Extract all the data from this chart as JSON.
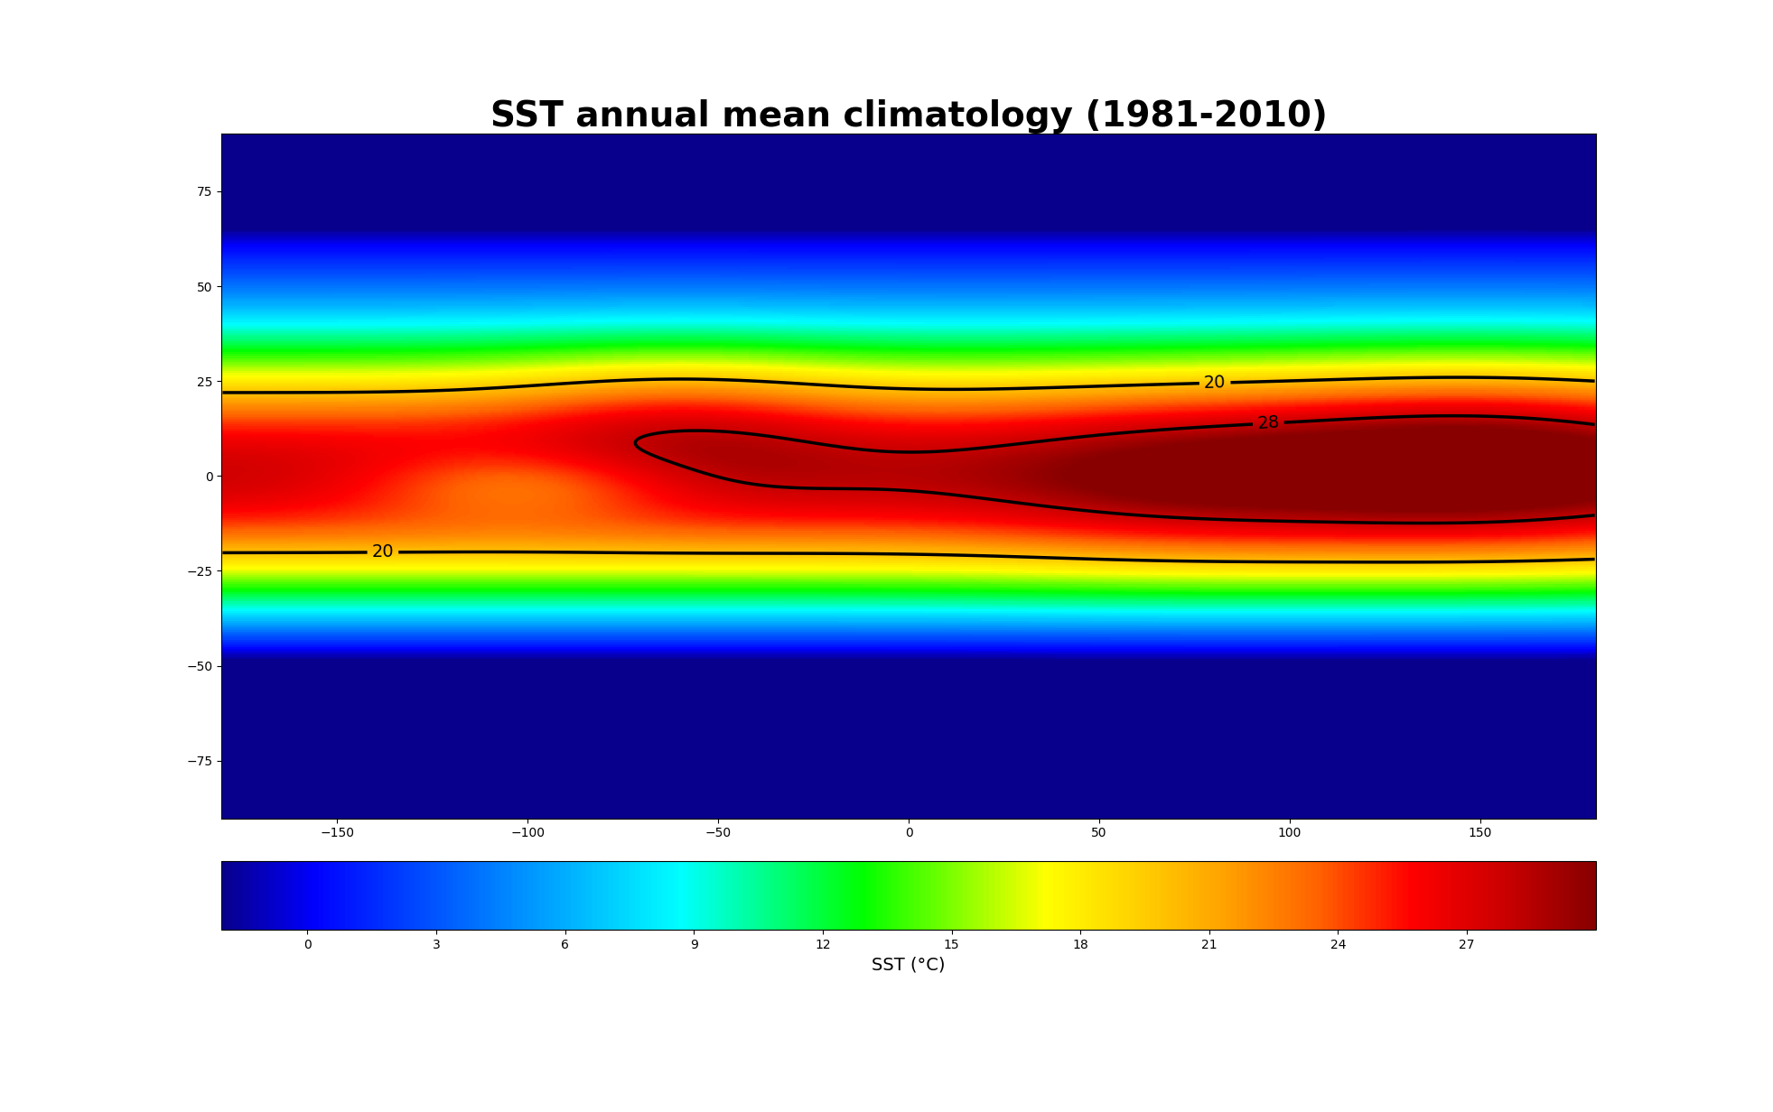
{
  "title": "SST annual mean climatology (1981-2010)",
  "title_fontsize": 28,
  "title_fontweight": "bold",
  "colorbar_label": "SST (°C)",
  "colorbar_ticks": [
    0,
    3,
    6,
    9,
    12,
    15,
    18,
    21,
    24,
    27
  ],
  "vmin": -2,
  "vmax": 30,
  "contour_levels": [
    20,
    28
  ],
  "contour_color": "black",
  "contour_linewidth": 2.5,
  "contour_fontsize": 14,
  "background_color": "white",
  "land_color": "white",
  "ocean_missing_color": "#c8c8c8",
  "projection": "robinson",
  "figsize": [
    19.63,
    12.32
  ],
  "dpi": 100
}
